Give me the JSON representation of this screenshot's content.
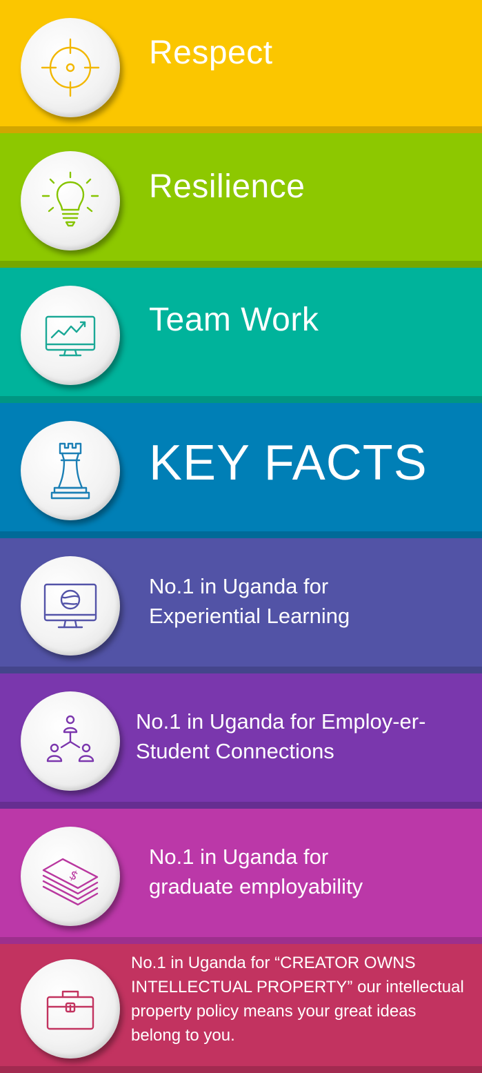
{
  "items": [
    {
      "label": "Respect",
      "color": "#fbc600",
      "icon": "target-icon"
    },
    {
      "label": "Resilience",
      "color": "#8dc800",
      "icon": "lightbulb-icon"
    },
    {
      "label": "Team Work",
      "color": "#00b39b",
      "icon": "monitor-chart-icon"
    },
    {
      "label": "KEY FACTS",
      "color": "#007fb6",
      "icon": "chess-rook-icon"
    },
    {
      "label": "No.1 in Uganda for Experiential Learning",
      "color": "#5253a6",
      "icon": "monitor-globe-icon"
    },
    {
      "label": "No.1 in Uganda for Employ-er-Student Connections",
      "color": "#7a37ad",
      "icon": "network-people-icon"
    },
    {
      "label": "No.1 in Uganda for graduate employability",
      "color": "#bb38a8",
      "icon": "money-stack-icon"
    },
    {
      "label": "No.1 in Uganda for “CREATOR OWNS INTELLECTUAL PROPERTY” our intellectual property policy means your great ideas belong to you.",
      "color": "#c23360",
      "icon": "briefcase-icon"
    }
  ]
}
